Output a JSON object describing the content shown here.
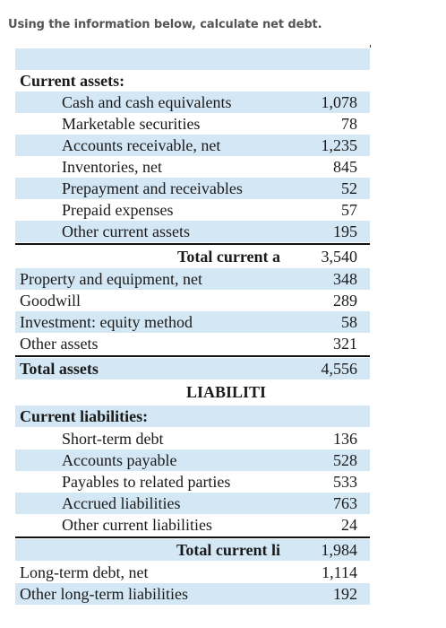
{
  "question": "Using the information below, calculate net debt.",
  "current_assets": {
    "header": "Current assets:",
    "items": [
      {
        "label": "Cash and cash equivalents",
        "value": "1,078"
      },
      {
        "label": "Marketable securities",
        "value": "78"
      },
      {
        "label": "Accounts receivable, net",
        "value": "1,235"
      },
      {
        "label": "Inventories, net",
        "value": "845"
      },
      {
        "label": "Prepayment and receivables",
        "value": "52"
      },
      {
        "label": "Prepaid expenses",
        "value": "57"
      },
      {
        "label": "Other current assets",
        "value": "195"
      }
    ],
    "total": {
      "label": "Total current a",
      "value": "3,540"
    }
  },
  "other_assets": [
    {
      "label": "Property and equipment, net",
      "value": "348"
    },
    {
      "label": "Goodwill",
      "value": "289"
    },
    {
      "label": "Investment: equity method",
      "value": "58"
    },
    {
      "label": "Other assets",
      "value": "321"
    }
  ],
  "total_assets": {
    "label": "Total assets",
    "value": "4,556"
  },
  "liabilities_heading": "LIABILITI",
  "current_liabilities": {
    "header": "Current liabilities:",
    "items": [
      {
        "label": "Short-term debt",
        "value": "136"
      },
      {
        "label": "Accounts payable",
        "value": "528"
      },
      {
        "label": "Payables to related parties",
        "value": "533"
      },
      {
        "label": "Accrued liabilities",
        "value": "763"
      },
      {
        "label": "Other current liabilities",
        "value": "24"
      }
    ],
    "total": {
      "label": "Total current li",
      "value": "1,984"
    }
  },
  "long_term": [
    {
      "label": "Long-term debt, net",
      "value": "1,114"
    },
    {
      "label": "Other long-term liabilities",
      "value": "192"
    }
  ],
  "colors": {
    "row_shade": "#d4e7f5",
    "question_text": "#555555",
    "table_text": "#1a1a1a"
  }
}
